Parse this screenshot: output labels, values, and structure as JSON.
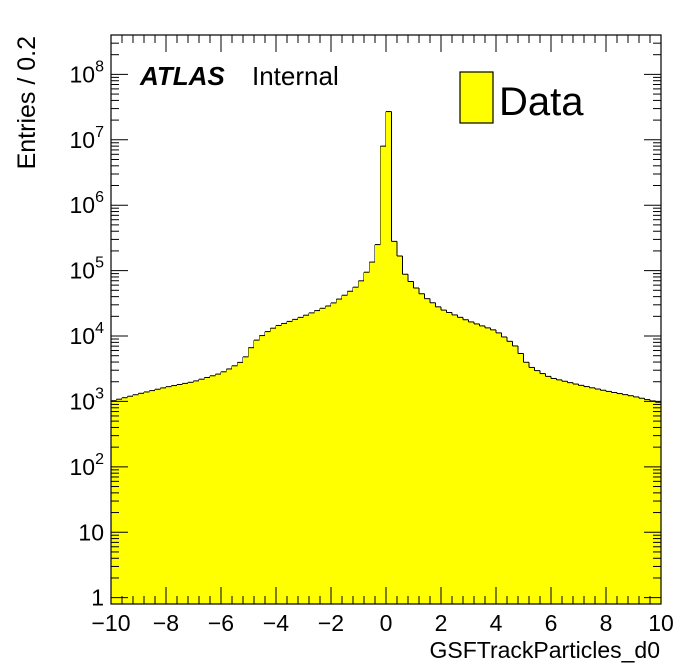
{
  "chart_data": {
    "type": "bar",
    "style": "histogram-step-filled",
    "x_range": [
      -10,
      10
    ],
    "y_scale": "log",
    "y_range": [
      0.8,
      400000000
    ],
    "bin_width": 0.2,
    "xlabel": "GSFTrackParticles_d0",
    "ylabel": "Entries / 0.2",
    "x_ticks": [
      -10,
      -8,
      -6,
      -4,
      -2,
      0,
      2,
      4,
      6,
      8,
      10
    ],
    "x_tick_labels": [
      "−10",
      "−8",
      "−6",
      "−4",
      "−2",
      "0",
      "2",
      "4",
      "6",
      "8",
      "10"
    ],
    "y_ticks": [
      1,
      10,
      100,
      1000,
      10000,
      100000,
      1000000,
      10000000,
      100000000
    ],
    "y_tick_labels": [
      {
        "base": "1",
        "exp": ""
      },
      {
        "base": "10",
        "exp": ""
      },
      {
        "base": "10",
        "exp": "2"
      },
      {
        "base": "10",
        "exp": "3"
      },
      {
        "base": "10",
        "exp": "4"
      },
      {
        "base": "10",
        "exp": "5"
      },
      {
        "base": "10",
        "exp": "6"
      },
      {
        "base": "10",
        "exp": "7"
      },
      {
        "base": "10",
        "exp": "8"
      }
    ],
    "series": [
      {
        "name": "Data",
        "color": "#ffff00",
        "line_color": "#000000",
        "profile_x": [
          -10,
          -9,
          -8,
          -7,
          -6,
          -5.6,
          -5.2,
          -5.0,
          -4.8,
          -4.4,
          -4.0,
          -3.0,
          -2.0,
          -1.4,
          -1.0,
          -0.6,
          -0.2,
          0.0,
          0.2,
          0.4,
          0.6,
          1.0,
          1.4,
          2.0,
          3.0,
          4.0,
          4.4,
          4.8,
          5.0,
          5.2,
          5.6,
          6.0,
          7.0,
          8.0,
          9.0,
          10.0
        ],
        "profile_y": [
          1000,
          1300,
          1650,
          2000,
          2700,
          3300,
          4200,
          5500,
          8000,
          11000,
          14000,
          20000,
          30000,
          45000,
          60000,
          110000,
          250000,
          8000000,
          27000000,
          280000,
          100000,
          60000,
          40000,
          26000,
          17000,
          12000,
          9000,
          6500,
          4500,
          3500,
          2800,
          2300,
          1800,
          1450,
          1200,
          950
        ]
      }
    ],
    "legend": {
      "position": "top-right",
      "entries": [
        "Data"
      ]
    },
    "annotations": {
      "experiment": "ATLAS",
      "status": "Internal"
    },
    "grid": false
  }
}
